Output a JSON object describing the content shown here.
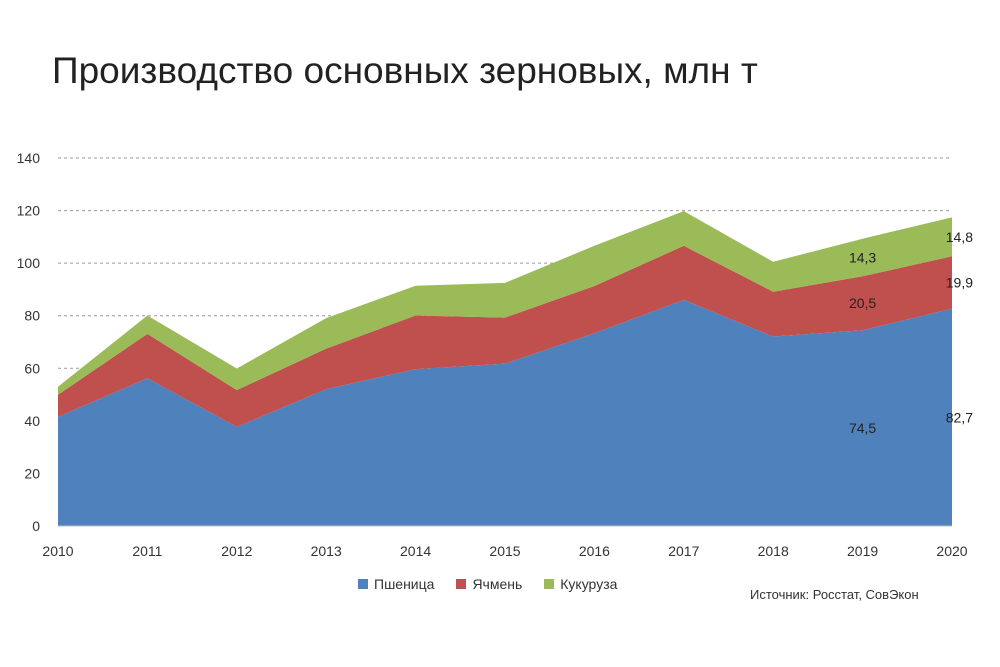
{
  "title": "Производство основных зерновых, млн т",
  "source": "Источник: Росстат, СовЭкон",
  "chart_data": {
    "type": "area",
    "stacked": true,
    "x": [
      "2010",
      "2011",
      "2012",
      "2013",
      "2014",
      "2015",
      "2016",
      "2017",
      "2018",
      "2019",
      "2020"
    ],
    "ylim": [
      0,
      140
    ],
    "yticks": [
      "0",
      "20",
      "40",
      "60",
      "80",
      "100",
      "120",
      "140"
    ],
    "grid": true,
    "legend_position": "bottom",
    "series": [
      {
        "name": "Пшеница",
        "color": "#4F81BD",
        "values": [
          41.5,
          56.2,
          37.7,
          52.1,
          59.7,
          61.8,
          73.3,
          86.0,
          72.1,
          74.5,
          82.7
        ]
      },
      {
        "name": "Ячмень",
        "color": "#C0504D",
        "values": [
          8.4,
          16.9,
          14.0,
          15.4,
          20.4,
          17.5,
          18.0,
          20.6,
          17.0,
          20.5,
          19.9
        ]
      },
      {
        "name": "Кукуруза",
        "color": "#9BBB59",
        "values": [
          3.1,
          7.0,
          8.2,
          11.6,
          11.3,
          13.2,
          15.3,
          13.2,
          11.4,
          14.3,
          14.8
        ]
      }
    ],
    "data_labels": [
      {
        "series": 0,
        "index": 9,
        "text": "74,5"
      },
      {
        "series": 0,
        "index": 10,
        "text": "82,7"
      },
      {
        "series": 1,
        "index": 9,
        "text": "20,5"
      },
      {
        "series": 1,
        "index": 10,
        "text": "19,9"
      },
      {
        "series": 2,
        "index": 9,
        "text": "14,3"
      },
      {
        "series": 2,
        "index": 10,
        "text": "14,8"
      }
    ]
  }
}
